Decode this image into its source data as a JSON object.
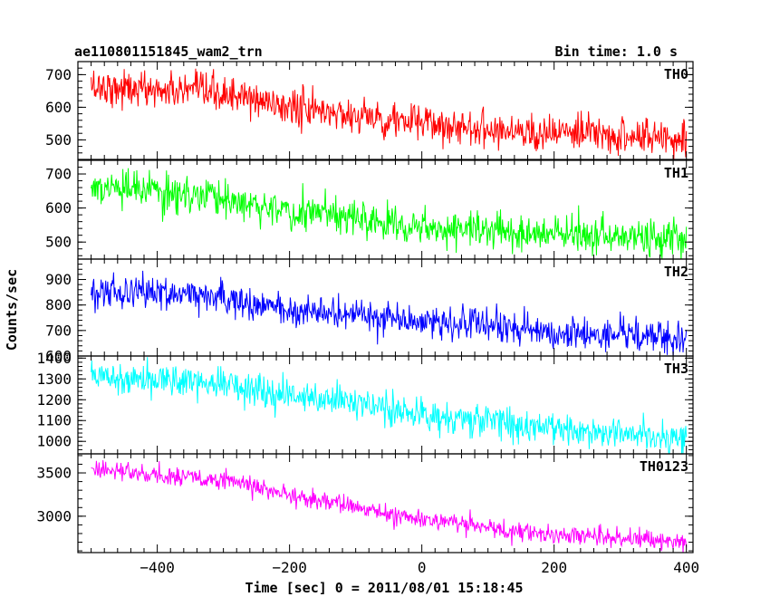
{
  "header": {
    "title": "ae110801151845_wam2_trn",
    "bin_time": "Bin time: 1.0 s"
  },
  "chart_data": {
    "type": "line",
    "title": "ae110801151845_wam2_trn",
    "xlabel": "Time [sec] 0 = 2011/08/01 15:18:45",
    "ylabel": "Counts/sec",
    "xlim": [
      -520,
      410
    ],
    "x_ticks": [
      -400,
      -200,
      0,
      200,
      400
    ],
    "x_tick_labels": [
      "−400",
      "−200",
      "0",
      "200",
      "400"
    ],
    "x_start": -500,
    "x_end": 400,
    "bin_time_s": 1.0,
    "grid": false,
    "panels": [
      {
        "name": "TH0",
        "color": "#ff0000",
        "ylim": [
          440,
          740
        ],
        "y_ticks": [
          500,
          600,
          700
        ],
        "trend_x": [
          -500,
          -300,
          -200,
          0,
          200,
          400
        ],
        "trend_y": [
          665,
          640,
          600,
          550,
          520,
          505
        ],
        "noise_sd": 28
      },
      {
        "name": "TH1",
        "color": "#00ff00",
        "ylim": [
          450,
          740
        ],
        "y_ticks": [
          500,
          600,
          700
        ],
        "trend_x": [
          -500,
          -300,
          -200,
          0,
          200,
          400
        ],
        "trend_y": [
          660,
          630,
          590,
          550,
          520,
          510
        ],
        "noise_sd": 27
      },
      {
        "name": "TH2",
        "color": "#0000ff",
        "ylim": [
          600,
          980
        ],
        "y_ticks": [
          600,
          700,
          800,
          900
        ],
        "y_tick_labels": [
          "600",
          "700",
          "800",
          "900"
        ],
        "trend_x": [
          -500,
          -300,
          -200,
          0,
          200,
          400
        ],
        "trend_y": [
          860,
          830,
          780,
          740,
          690,
          670
        ],
        "noise_sd": 32
      },
      {
        "name": "TH3",
        "color": "#00ffff",
        "ylim": [
          940,
          1410
        ],
        "y_ticks": [
          1000,
          1100,
          1200,
          1300,
          1400
        ],
        "trend_x": [
          -500,
          -300,
          -200,
          0,
          200,
          400
        ],
        "trend_y": [
          1320,
          1280,
          1230,
          1130,
          1060,
          1020
        ],
        "noise_sd": 40
      },
      {
        "name": "TH0123",
        "color": "#ff00ff",
        "ylim": [
          2580,
          3720
        ],
        "y_ticks": [
          3000,
          3500
        ],
        "trend_x": [
          -500,
          -300,
          -250,
          -200,
          0,
          200,
          400
        ],
        "trend_y": [
          3540,
          3420,
          3330,
          3240,
          2960,
          2790,
          2710
        ],
        "noise_sd": 55
      }
    ]
  }
}
